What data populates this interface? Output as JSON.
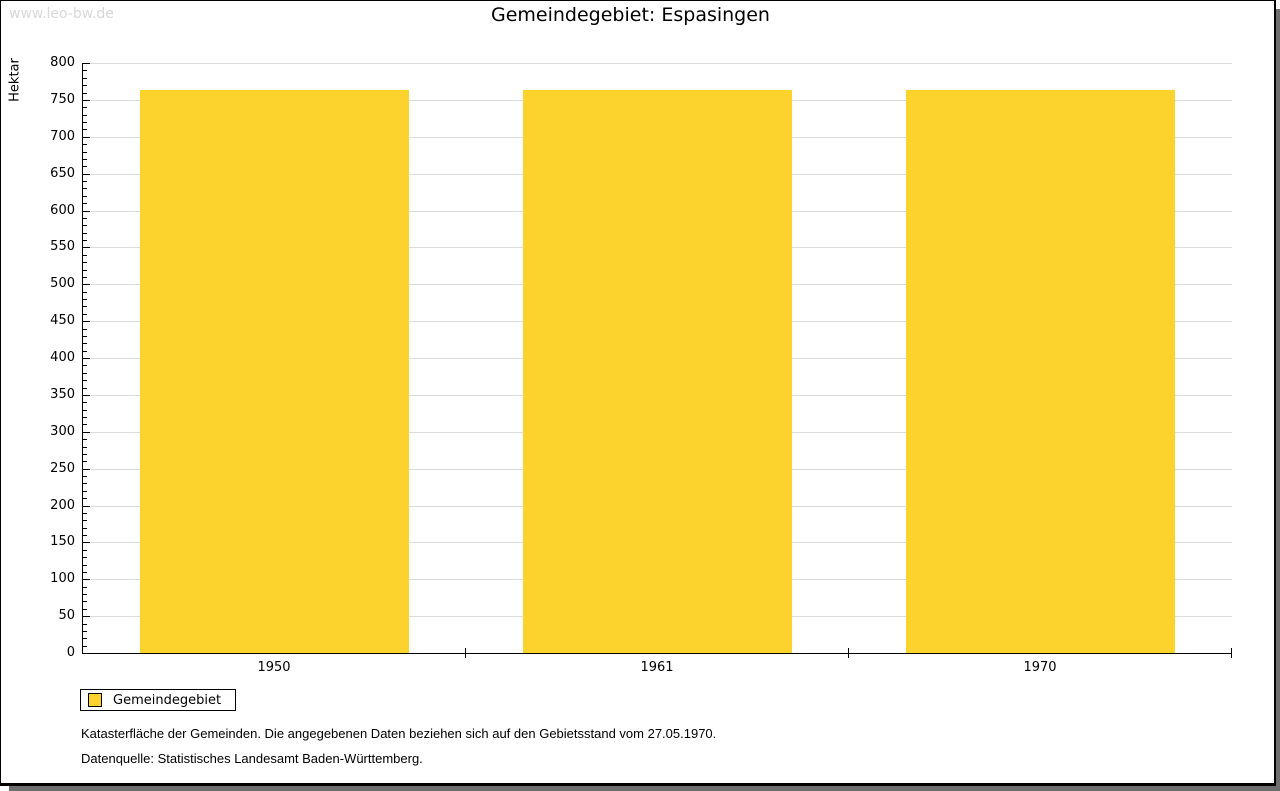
{
  "watermark": "www.leo-bw.de",
  "title": "Gemeindegebiet: Espasingen",
  "chart_data": {
    "type": "bar",
    "title": "Gemeindegebiet: Espasingen",
    "categories": [
      "1950",
      "1961",
      "1970"
    ],
    "series": [
      {
        "name": "Gemeindegebiet",
        "values": [
          763,
          763,
          763
        ]
      }
    ],
    "xlabel": "",
    "ylabel": "Hektar",
    "ylim": [
      0,
      800
    ],
    "yticks": [
      0,
      50,
      100,
      150,
      200,
      250,
      300,
      350,
      400,
      450,
      500,
      550,
      600,
      650,
      700,
      750,
      800
    ],
    "minor_tick_step": 10,
    "grid": true,
    "legend_position": "bottom-left",
    "bar_color": "#FCD32D"
  },
  "legend": {
    "items": [
      {
        "label": "Gemeindegebiet",
        "color": "#FCD32D"
      }
    ]
  },
  "footnotes": [
    "Katasterfläche der Gemeinden. Die angegebenen Daten beziehen sich auf den Gebietsstand vom 27.05.1970.",
    "Datenquelle: Statistisches Landesamt Baden-Württemberg."
  ],
  "colors": {
    "bar": "#FCD32D",
    "gridline": "#DCDCDC",
    "axis": "#000000",
    "watermark": "#D8D8D8",
    "shadow": "#6E6E6E",
    "text": "#000000"
  }
}
